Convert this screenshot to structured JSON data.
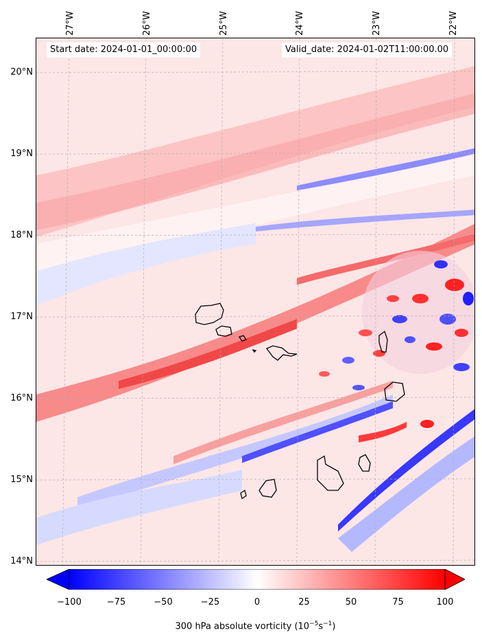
{
  "map": {
    "info": {
      "start_date": "Start date: 2024-01-01_00:00:00",
      "valid_date": "Valid_date: 2024-01-02T11:00:00.00"
    },
    "longitude_labels": [
      "27°W",
      "26°W",
      "25°W",
      "24°W",
      "23°W",
      "22°W"
    ],
    "latitude_labels": [
      "20°N",
      "19°N",
      "18°N",
      "17°N",
      "16°N",
      "15°N",
      "14°N"
    ],
    "colors": {
      "strong_positive": "#ff0000",
      "positive": "#ff8080",
      "weak_positive": "#fdd6d6",
      "neutral": "#ffffff",
      "weak_negative": "#d8dcff",
      "negative": "#8080ff",
      "strong_negative": "#0000ff",
      "coastline": "#000000",
      "gridline": "#b0b0b0"
    }
  },
  "colorbar": {
    "ticks": [
      "−100",
      "−75",
      "−50",
      "−25",
      "0",
      "25",
      "50",
      "75",
      "100"
    ],
    "label_main": "300 hPa absolute vorticity (10",
    "label_exp1": "−5",
    "label_mid": "s",
    "label_exp2": "−1",
    "label_end": ")"
  }
}
